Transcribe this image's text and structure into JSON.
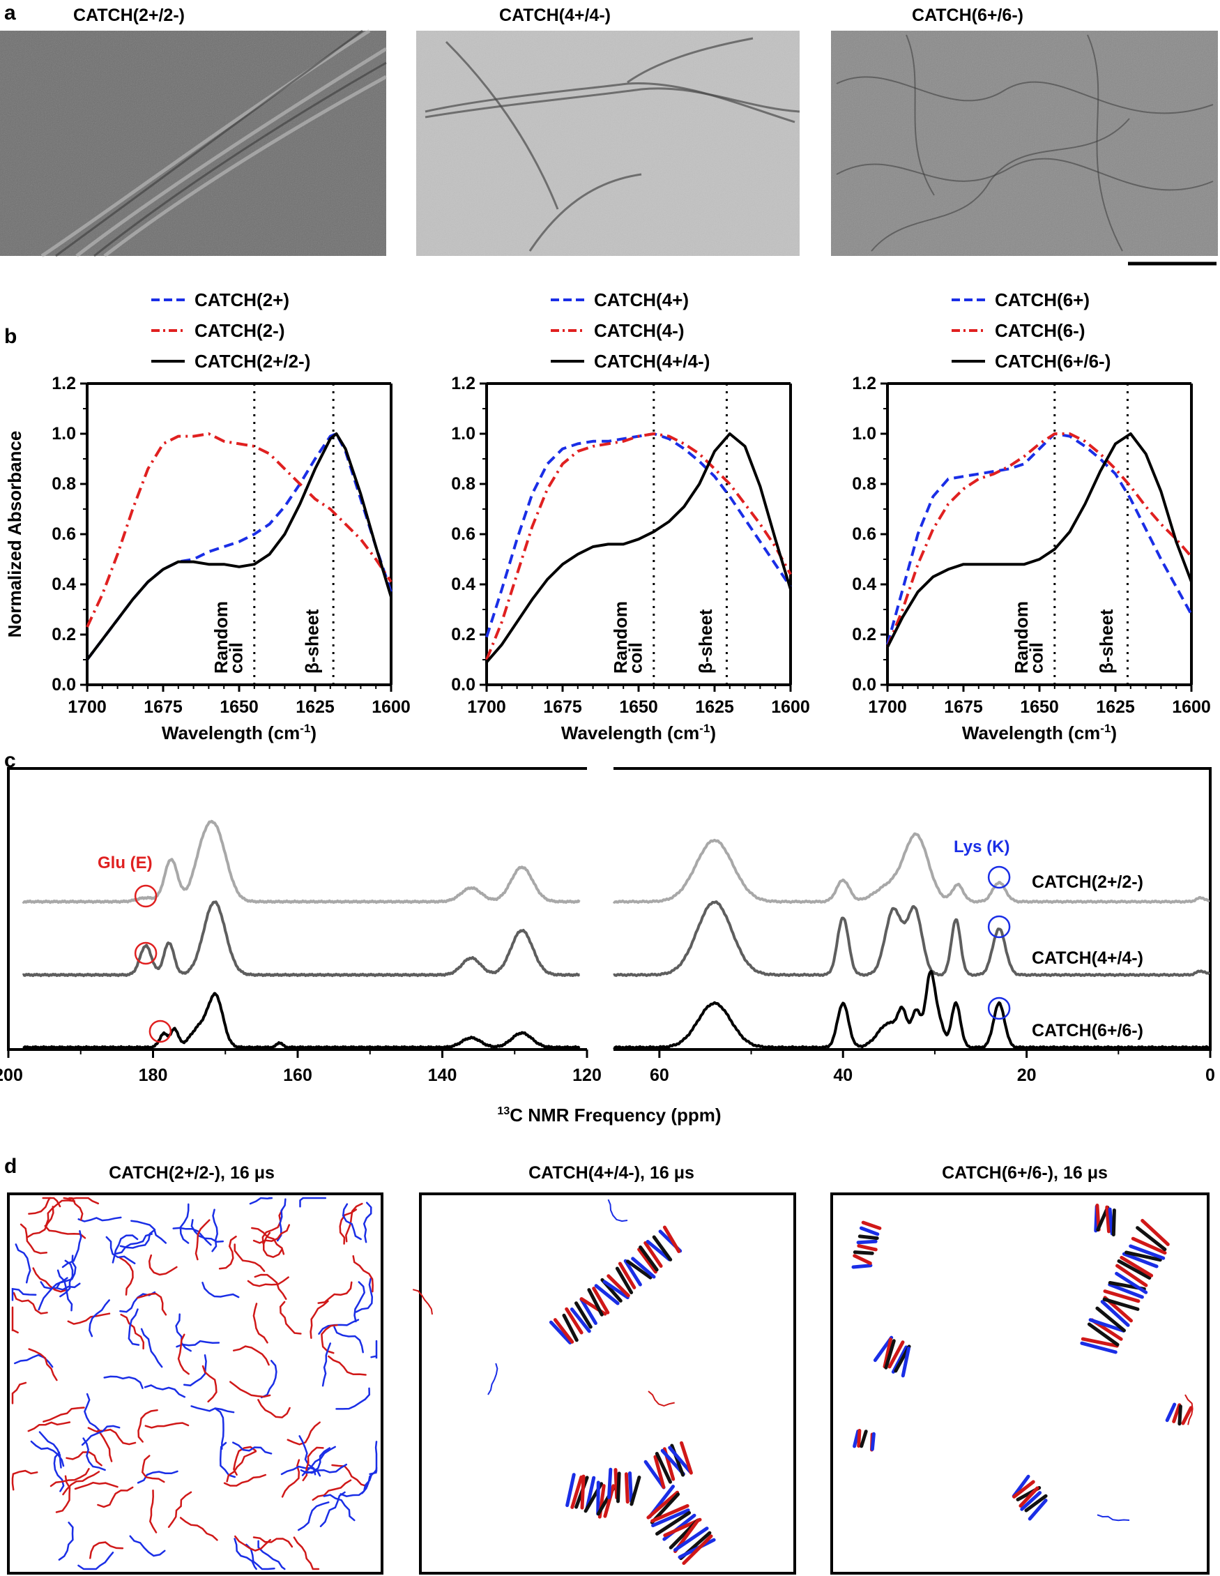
{
  "panel_letters": {
    "a": "a",
    "b": "b",
    "c": "c",
    "d": "d"
  },
  "panel_a": {
    "titles": [
      "CATCH(2+/2-)",
      "CATCH(4+/4-)",
      "CATCH(6+/6-)"
    ],
    "image_tones": [
      "#6f6f6f",
      "#c2c2c2",
      "#8a8a8a"
    ]
  },
  "chart_data": [
    {
      "panel": "b1",
      "type": "line",
      "legend": [
        "CATCH(2+)",
        "CATCH(2-)",
        "CATCH(2+/2-)"
      ],
      "xlabel": "Wavelength (cm",
      "xlabel_sup": "-1",
      "xlabel_end": ")",
      "ylabel": "Normalized Absorbance",
      "xlim": [
        1700,
        1600
      ],
      "ylim": [
        0,
        1.2
      ],
      "xticks": [
        "1700",
        "1675",
        "1650",
        "1625",
        "1600"
      ],
      "yticks": [
        "0.0",
        "0.2",
        "0.4",
        "0.6",
        "0.8",
        "1.0",
        "1.2"
      ],
      "vlines": [
        1645,
        1619
      ],
      "annotations": [
        {
          "text": "Random",
          "x": 1656
        },
        {
          "text": "coil",
          "x": 1651
        },
        {
          "text": "β-sheet",
          "x": 1626
        }
      ],
      "series": [
        {
          "name": "CATCH(2+)",
          "color": "#1a2ee6",
          "style": "dashed",
          "x": [
            1700,
            1695,
            1690,
            1685,
            1680,
            1675,
            1670,
            1665,
            1660,
            1655,
            1650,
            1645,
            1640,
            1635,
            1630,
            1625,
            1620,
            1618,
            1615,
            1610,
            1605,
            1600
          ],
          "y": [
            0.1,
            0.18,
            0.26,
            0.34,
            0.41,
            0.46,
            0.49,
            0.5,
            0.53,
            0.55,
            0.57,
            0.6,
            0.64,
            0.71,
            0.8,
            0.9,
            0.99,
            1.0,
            0.93,
            0.74,
            0.55,
            0.37
          ]
        },
        {
          "name": "CATCH(2-)",
          "color": "#e02020",
          "style": "dashdot",
          "x": [
            1700,
            1695,
            1690,
            1685,
            1680,
            1675,
            1670,
            1665,
            1660,
            1655,
            1650,
            1645,
            1640,
            1635,
            1630,
            1625,
            1620,
            1615,
            1610,
            1605,
            1600
          ],
          "y": [
            0.23,
            0.36,
            0.52,
            0.7,
            0.86,
            0.96,
            0.99,
            0.99,
            1.0,
            0.97,
            0.96,
            0.95,
            0.92,
            0.86,
            0.8,
            0.74,
            0.7,
            0.64,
            0.58,
            0.5,
            0.41
          ]
        },
        {
          "name": "CATCH(2+/2-)",
          "color": "#000000",
          "style": "solid",
          "x": [
            1700,
            1695,
            1690,
            1685,
            1680,
            1675,
            1670,
            1665,
            1660,
            1655,
            1650,
            1645,
            1640,
            1635,
            1630,
            1625,
            1620,
            1618,
            1615,
            1610,
            1605,
            1600
          ],
          "y": [
            0.1,
            0.18,
            0.26,
            0.34,
            0.41,
            0.46,
            0.49,
            0.49,
            0.48,
            0.48,
            0.47,
            0.48,
            0.52,
            0.6,
            0.72,
            0.86,
            0.98,
            1.0,
            0.94,
            0.76,
            0.55,
            0.35
          ]
        }
      ]
    },
    {
      "panel": "b2",
      "type": "line",
      "legend": [
        "CATCH(4+)",
        "CATCH(4-)",
        "CATCH(4+/4-)"
      ],
      "xlabel": "Wavelength (cm",
      "xlabel_sup": "-1",
      "xlabel_end": ")",
      "ylabel": "",
      "xlim": [
        1700,
        1600
      ],
      "ylim": [
        0,
        1.2
      ],
      "xticks": [
        "1700",
        "1675",
        "1650",
        "1625",
        "1600"
      ],
      "yticks": [
        "0.0",
        "0.2",
        "0.4",
        "0.6",
        "0.8",
        "1.0",
        "1.2"
      ],
      "vlines": [
        1645,
        1621
      ],
      "annotations": [
        {
          "text": "Random",
          "x": 1656
        },
        {
          "text": "coil",
          "x": 1651
        },
        {
          "text": "β-sheet",
          "x": 1628
        }
      ],
      "series": [
        {
          "name": "CATCH(4+)",
          "color": "#1a2ee6",
          "style": "dashed",
          "x": [
            1700,
            1695,
            1690,
            1685,
            1680,
            1675,
            1670,
            1665,
            1660,
            1655,
            1650,
            1645,
            1640,
            1635,
            1630,
            1625,
            1620,
            1615,
            1610,
            1605,
            1600
          ],
          "y": [
            0.19,
            0.38,
            0.58,
            0.76,
            0.88,
            0.94,
            0.96,
            0.97,
            0.97,
            0.98,
            0.99,
            1.0,
            0.98,
            0.94,
            0.89,
            0.83,
            0.75,
            0.66,
            0.57,
            0.48,
            0.39
          ]
        },
        {
          "name": "CATCH(4-)",
          "color": "#e02020",
          "style": "dashdot",
          "x": [
            1700,
            1695,
            1690,
            1685,
            1680,
            1675,
            1670,
            1665,
            1660,
            1655,
            1650,
            1645,
            1640,
            1635,
            1630,
            1625,
            1620,
            1615,
            1610,
            1605,
            1600
          ],
          "y": [
            0.1,
            0.25,
            0.44,
            0.63,
            0.78,
            0.88,
            0.93,
            0.95,
            0.96,
            0.97,
            0.99,
            1.0,
            0.99,
            0.96,
            0.92,
            0.86,
            0.8,
            0.72,
            0.64,
            0.55,
            0.44
          ]
        },
        {
          "name": "CATCH(4+/4-)",
          "color": "#000000",
          "style": "solid",
          "x": [
            1700,
            1695,
            1690,
            1685,
            1680,
            1675,
            1670,
            1665,
            1660,
            1655,
            1650,
            1645,
            1640,
            1635,
            1630,
            1625,
            1620,
            1615,
            1610,
            1605,
            1600
          ],
          "y": [
            0.09,
            0.16,
            0.25,
            0.34,
            0.42,
            0.48,
            0.52,
            0.55,
            0.56,
            0.56,
            0.58,
            0.61,
            0.65,
            0.71,
            0.8,
            0.93,
            1.0,
            0.95,
            0.79,
            0.58,
            0.38
          ]
        }
      ]
    },
    {
      "panel": "b3",
      "type": "line",
      "legend": [
        "CATCH(6+)",
        "CATCH(6-)",
        "CATCH(6+/6-)"
      ],
      "xlabel": "Wavelength (cm",
      "xlabel_sup": "-1",
      "xlabel_end": ")",
      "ylabel": "",
      "xlim": [
        1700,
        1600
      ],
      "ylim": [
        0,
        1.2
      ],
      "xticks": [
        "1700",
        "1675",
        "1650",
        "1625",
        "1600"
      ],
      "yticks": [
        "0.0",
        "0.2",
        "0.4",
        "0.6",
        "0.8",
        "1.0",
        "1.2"
      ],
      "vlines": [
        1645,
        1621
      ],
      "annotations": [
        {
          "text": "Random",
          "x": 1656
        },
        {
          "text": "coil",
          "x": 1651
        },
        {
          "text": "β-sheet",
          "x": 1628
        }
      ],
      "series": [
        {
          "name": "CATCH(6+)",
          "color": "#1a2ee6",
          "style": "dashed",
          "x": [
            1700,
            1695,
            1690,
            1685,
            1680,
            1675,
            1670,
            1665,
            1660,
            1655,
            1650,
            1645,
            1640,
            1635,
            1630,
            1625,
            1620,
            1615,
            1610,
            1605,
            1600
          ],
          "y": [
            0.16,
            0.38,
            0.6,
            0.75,
            0.82,
            0.83,
            0.84,
            0.85,
            0.86,
            0.88,
            0.94,
            1.0,
            0.99,
            0.95,
            0.9,
            0.84,
            0.74,
            0.62,
            0.5,
            0.39,
            0.28
          ]
        },
        {
          "name": "CATCH(6-)",
          "color": "#e02020",
          "style": "dashdot",
          "x": [
            1700,
            1695,
            1690,
            1685,
            1680,
            1675,
            1670,
            1665,
            1660,
            1655,
            1650,
            1645,
            1640,
            1635,
            1630,
            1625,
            1620,
            1615,
            1610,
            1605,
            1600
          ],
          "y": [
            0.15,
            0.3,
            0.48,
            0.62,
            0.72,
            0.78,
            0.82,
            0.84,
            0.87,
            0.91,
            0.96,
            1.0,
            1.0,
            0.97,
            0.92,
            0.86,
            0.79,
            0.71,
            0.64,
            0.58,
            0.51
          ]
        },
        {
          "name": "CATCH(6+/6-)",
          "color": "#000000",
          "style": "solid",
          "x": [
            1700,
            1695,
            1690,
            1685,
            1680,
            1675,
            1670,
            1665,
            1660,
            1655,
            1650,
            1645,
            1640,
            1635,
            1630,
            1625,
            1620,
            1615,
            1610,
            1605,
            1600
          ],
          "y": [
            0.15,
            0.27,
            0.37,
            0.43,
            0.46,
            0.48,
            0.48,
            0.48,
            0.48,
            0.48,
            0.5,
            0.54,
            0.61,
            0.72,
            0.85,
            0.96,
            1.0,
            0.92,
            0.77,
            0.57,
            0.41
          ]
        }
      ]
    },
    {
      "panel": "c",
      "type": "line",
      "xlabel_sup": "13",
      "xlabel": "C NMR Frequency (ppm)",
      "xticks_left": [
        "200",
        "180",
        "160",
        "140",
        "120"
      ],
      "xticks_right": [
        "60",
        "40",
        "20",
        "0"
      ],
      "xlim_left": [
        200,
        120
      ],
      "xlim_right": [
        65,
        0
      ],
      "labels": {
        "glu": "Glu (E)",
        "lys": "Lys (K)",
        "glu_color": "#e02020",
        "lys_color": "#1a2ee6"
      },
      "series": [
        {
          "name": "CATCH(2+/2-)",
          "color": "#a8a8a8",
          "peaks": [
            [
              181,
              0.05,
              1.2
            ],
            [
              177.5,
              0.55,
              0.9
            ],
            [
              173.5,
              0.3,
              1.2
            ],
            [
              171.5,
              0.95,
              1.6
            ],
            [
              136,
              0.18,
              1.4
            ],
            [
              129,
              0.45,
              1.5
            ],
            [
              54,
              0.8,
              2.0
            ],
            [
              40,
              0.28,
              0.7
            ],
            [
              35,
              0.2,
              1.5
            ],
            [
              32,
              0.85,
              1.3
            ],
            [
              27.5,
              0.22,
              0.6
            ],
            [
              23,
              0.25,
              0.7
            ],
            [
              1,
              0.05,
              0.5
            ]
          ]
        },
        {
          "name": "CATCH(4+/4-)",
          "color": "#5e5e5e",
          "peaks": [
            [
              181,
              0.38,
              0.8
            ],
            [
              177.8,
              0.42,
              0.7
            ],
            [
              171.5,
              0.95,
              1.5
            ],
            [
              136,
              0.22,
              1.3
            ],
            [
              129,
              0.58,
              1.5
            ],
            [
              54,
              0.95,
              1.9
            ],
            [
              40,
              0.75,
              0.6
            ],
            [
              34.5,
              0.85,
              0.9
            ],
            [
              32.2,
              0.85,
              0.8
            ],
            [
              27.7,
              0.72,
              0.5
            ],
            [
              23,
              0.6,
              0.7
            ],
            [
              1,
              0.05,
              0.5
            ]
          ]
        },
        {
          "name": "CATCH(6+/6-)",
          "color": "#000000",
          "peaks": [
            [
              178.5,
              0.17,
              0.6
            ],
            [
              177,
              0.22,
              0.5
            ],
            [
              173.5,
              0.25,
              1.3
            ],
            [
              171.3,
              0.6,
              1.0
            ],
            [
              162.5,
              0.06,
              0.4
            ],
            [
              136,
              0.12,
              1.3
            ],
            [
              129,
              0.18,
              1.4
            ],
            [
              54,
              0.55,
              1.8
            ],
            [
              40,
              0.55,
              0.6
            ],
            [
              35,
              0.3,
              1.2
            ],
            [
              33.5,
              0.35,
              0.5
            ],
            [
              32,
              0.45,
              0.5
            ],
            [
              30.5,
              0.9,
              0.5
            ],
            [
              29.5,
              0.3,
              0.5
            ],
            [
              27.7,
              0.55,
              0.5
            ],
            [
              23,
              0.55,
              0.6
            ]
          ]
        }
      ]
    }
  ],
  "panel_c": {
    "trace_labels": [
      "CATCH(2+/2-)",
      "CATCH(4+/4-)",
      "CATCH(6+/6-)"
    ]
  },
  "panel_d": {
    "titles": [
      "CATCH(2+/2-), 16 μs",
      "CATCH(4+/4-), 16 μs",
      "CATCH(6+/6-), 16 μs"
    ],
    "colors": {
      "positive": "#1a2ee6",
      "negative": "#d01818"
    }
  }
}
